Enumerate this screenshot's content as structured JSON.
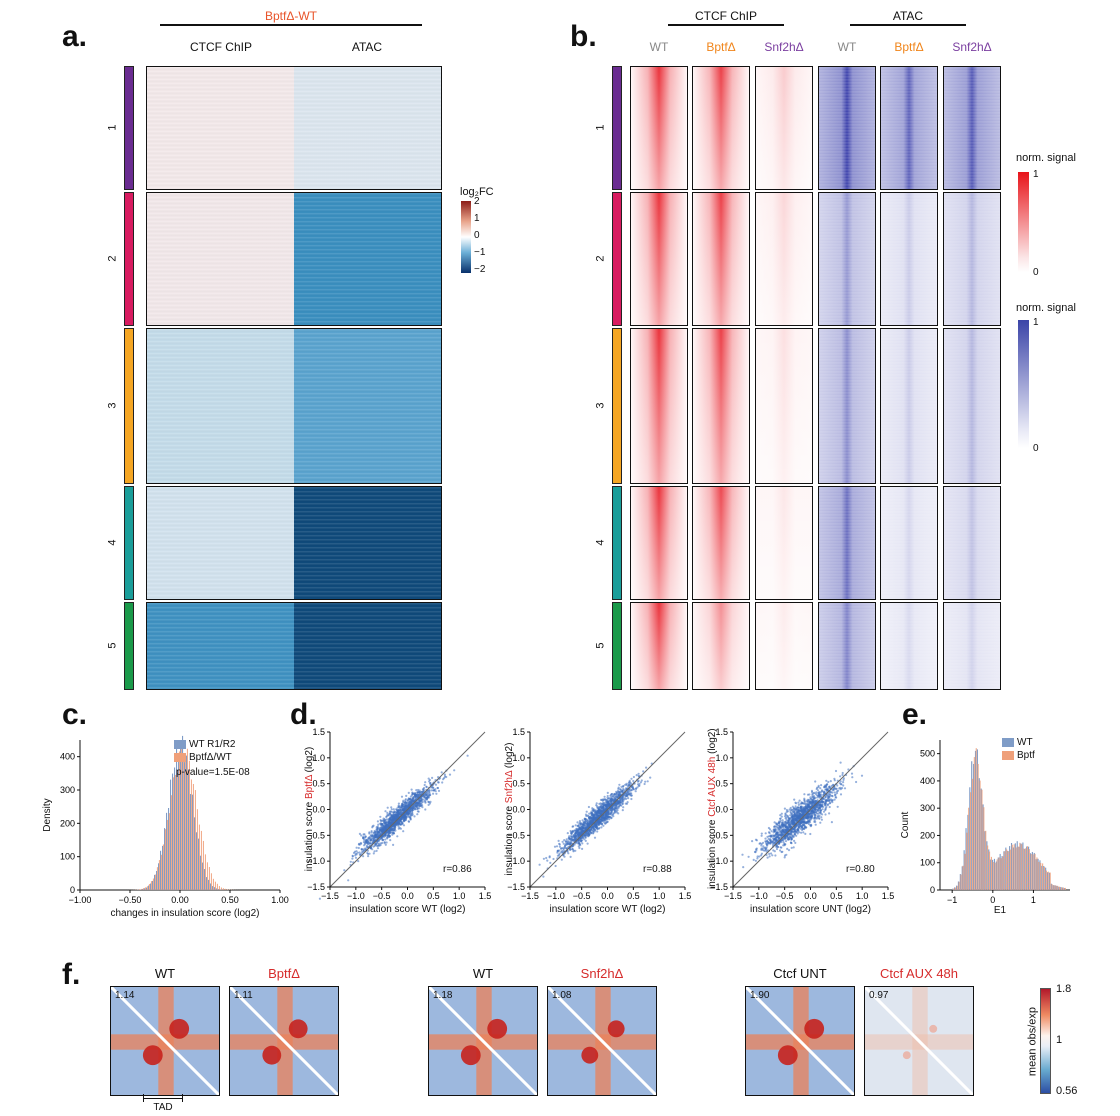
{
  "panels": {
    "a": "a.",
    "b": "b.",
    "c": "c.",
    "d": "d.",
    "e": "e.",
    "f": "f."
  },
  "panel_a": {
    "header": "BptfΔ-WT",
    "col1": "CTCF ChIP",
    "col2": "ATAC",
    "clusters": [
      "1",
      "2",
      "3",
      "4",
      "5"
    ],
    "cluster_colors": [
      "#6a2c91",
      "#d81b60",
      "#f5a623",
      "#1a9e9a",
      "#1a9a4a"
    ],
    "legend_title": "log₂FC",
    "legend_ticks": [
      "2",
      "1",
      "0",
      "−1",
      "−2"
    ],
    "fill_ctcf": [
      "#f3e9ea",
      "#f2e8ea",
      "#c4dcea",
      "#d2e2ee",
      "#3f92c2"
    ],
    "fill_atac": [
      "#dce6ef",
      "#3a8fc0",
      "#5aa4cf",
      "#0f4a7a",
      "#0f4a7a"
    ]
  },
  "panel_b": {
    "group1": "CTCF ChIP",
    "group2": "ATAC",
    "columns": [
      {
        "label": "WT",
        "color": "#888888"
      },
      {
        "label": "BptfΔ",
        "color": "#f0851b"
      },
      {
        "label": "Snf2hΔ",
        "color": "#7b3fa0"
      },
      {
        "label": "WT",
        "color": "#888888"
      },
      {
        "label": "BptfΔ",
        "color": "#f0851b"
      },
      {
        "label": "Snf2hΔ",
        "color": "#7b3fa0"
      }
    ],
    "clusters": [
      "1",
      "2",
      "3",
      "4",
      "5"
    ],
    "legend_red": {
      "title": "norm. signal",
      "max": "1",
      "min": "0"
    },
    "legend_blue": {
      "title": "norm. signal",
      "max": "1",
      "min": "0"
    }
  },
  "panel_c": {
    "legend": [
      "WT R1/R2",
      "BptfΔ/WT"
    ],
    "colors": [
      "#7f9cc7",
      "#efa07a"
    ],
    "pvalue": "p-value=1.5E-08",
    "ylabel": "Density",
    "xlabel": "changes in insulation score (log2)",
    "yticks": [
      "0",
      "100",
      "200",
      "300",
      "400"
    ],
    "xticks": [
      "−1.00",
      "−0.50",
      "0.00",
      "0.50",
      "1.00"
    ]
  },
  "panel_d": {
    "ticks": [
      "−1.5",
      "−1.0",
      "−0.5",
      "0.0",
      "0.5",
      "1.0",
      "1.5"
    ],
    "plots": [
      {
        "ylabel_prefix": "insulation score ",
        "ylabel_red": "BptfΔ",
        "ylabel_suffix": " (log2)",
        "xlabel": "insulation score WT (log2)",
        "r": "r=0.86"
      },
      {
        "ylabel_prefix": "insulation score ",
        "ylabel_red": "Snf2hΔ",
        "ylabel_suffix": " (log2)",
        "xlabel": "insulation score WT (log2)",
        "r": "r=0.88"
      },
      {
        "ylabel_prefix": "insulation score ",
        "ylabel_red": "Ctcf AUX 48h",
        "ylabel_suffix": " (log2)",
        "xlabel": "insulation score UNT (log2)",
        "r": "r=0.80"
      }
    ]
  },
  "panel_e": {
    "legend": [
      "WT",
      "Bptf"
    ],
    "colors": [
      "#7f9cc7",
      "#efa07a"
    ],
    "ylabel": "Count",
    "xlabel": "E1",
    "yticks": [
      "0",
      "100",
      "200",
      "300",
      "400",
      "500"
    ],
    "xticks": [
      "−1",
      "0",
      "1"
    ]
  },
  "panel_f": {
    "pairs": [
      {
        "left": "WT",
        "left_value": "1.14",
        "right": "BptfΔ",
        "right_value": "1.11",
        "right_red": true
      },
      {
        "left": "WT",
        "left_value": "1.18",
        "right": "Snf2hΔ",
        "right_value": "1.08",
        "right_red": true
      },
      {
        "left": "Ctcf UNT",
        "left_value": "1.90",
        "right": "Ctcf AUX 48h",
        "right_value": "0.97",
        "right_red": true
      }
    ],
    "tad_label": "TAD",
    "colorbar": {
      "max": "1.8",
      "mid": "1",
      "min": "0.56",
      "label": "mean obs/exp"
    }
  }
}
